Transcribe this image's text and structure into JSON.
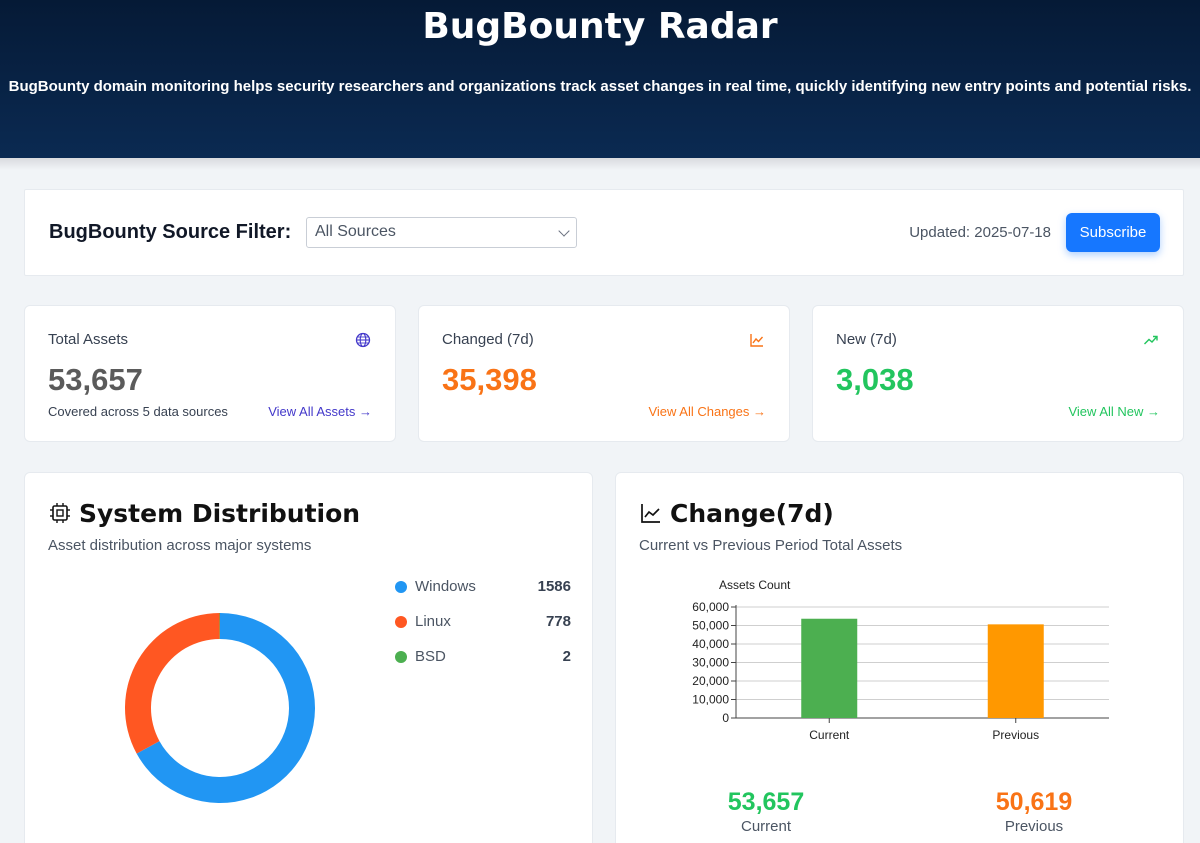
{
  "header": {
    "title": "BugBounty Radar",
    "description": "BugBounty domain monitoring helps security researchers and organizations track asset changes in real time, quickly identifying new entry points and potential risks."
  },
  "filter": {
    "label": "BugBounty Source Filter:",
    "selected": "All Sources",
    "updated": "Updated: 2025-07-18",
    "subscribe_label": "Subscribe"
  },
  "stats": [
    {
      "label": "Total Assets",
      "value": "53,657",
      "sub": "Covered across 5 data sources",
      "link": "View All Assets →",
      "color": "#5b5b5b",
      "link_color": "#4338ca",
      "icon": "globe-icon"
    },
    {
      "label": "Changed (7d)",
      "value": "35,398",
      "sub": "",
      "link": "View All Changes →",
      "color": "#f97316",
      "link_color": "#f97316",
      "icon": "line-chart-icon"
    },
    {
      "label": "New (7d)",
      "value": "3,038",
      "sub": "",
      "link": "View All New →",
      "color": "#22c55e",
      "link_color": "#22c55e",
      "icon": "trending-up-icon"
    }
  ],
  "system": {
    "title": "System Distribution",
    "subtitle": "Asset distribution across major systems",
    "icon": "cpu-icon"
  },
  "change": {
    "title": "Change(7d)",
    "subtitle": "Current vs Previous Period Total Assets",
    "icon": "line-chart-icon",
    "current_value": "53,657",
    "current_label": "Current",
    "previous_value": "50,619",
    "previous_label": "Previous",
    "current_color": "#22c55e",
    "previous_color": "#f97316"
  },
  "chart_data": [
    {
      "type": "pie",
      "donut": true,
      "categories": [
        "Windows",
        "Linux",
        "BSD"
      ],
      "values": [
        1586,
        778,
        2
      ],
      "colors": [
        "#2196f3",
        "#ff5722",
        "#4caf50"
      ],
      "legend": "right"
    },
    {
      "type": "bar",
      "categories": [
        "Current",
        "Previous"
      ],
      "values": [
        53657,
        50619
      ],
      "colors": [
        "#4caf50",
        "#ff9800"
      ],
      "ylabel": "Assets Count",
      "ylim": [
        0,
        60000
      ],
      "yticks": [
        "0",
        "10,000",
        "20,000",
        "30,000",
        "40,000",
        "50,000",
        "60,000"
      ],
      "grid": true
    }
  ]
}
